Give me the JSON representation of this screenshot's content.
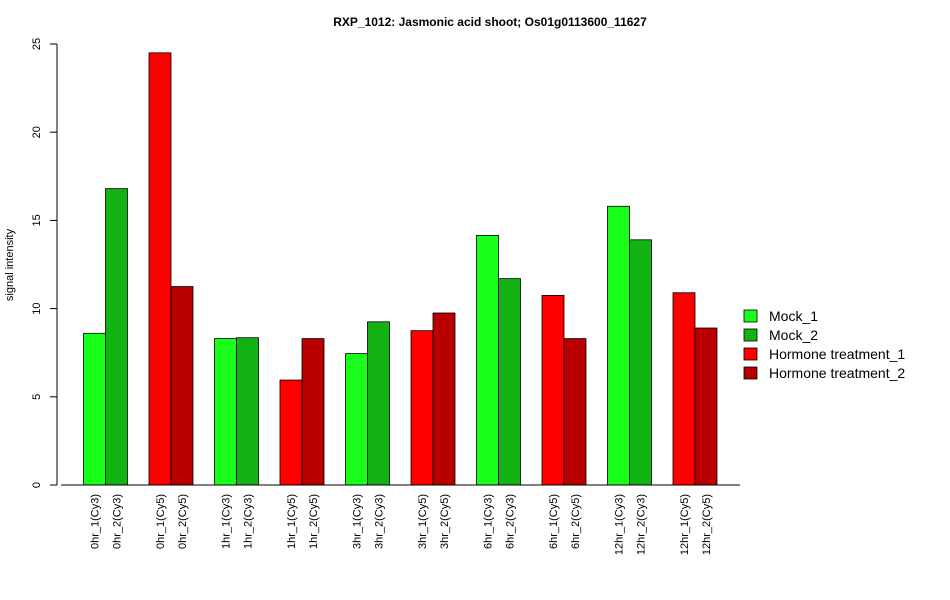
{
  "chart_data": {
    "type": "bar",
    "title": "RXP_1012: Jasmonic acid shoot; Os01g0113600_11627",
    "ylabel": "signal intensity",
    "xlabel": "",
    "ylim": [
      0,
      25
    ],
    "yticks": [
      0,
      5,
      10,
      15,
      20,
      25
    ],
    "grid": false,
    "legend_position": "right",
    "legend": [
      {
        "name": "Mock_1",
        "color": "#1aff1a"
      },
      {
        "name": "Mock_2",
        "color": "#11b211"
      },
      {
        "name": "Hormone treatment_1",
        "color": "#ff0000"
      },
      {
        "name": "Hormone treatment_2",
        "color": "#b80000"
      }
    ],
    "bars": [
      {
        "label": "0hr_1(Cy3)",
        "value": 8.6,
        "color": "#1aff1a"
      },
      {
        "label": "0hr_2(Cy3)",
        "value": 16.8,
        "color": "#11b211"
      },
      {
        "label": "0hr_1(Cy5)",
        "value": 24.5,
        "color": "#ff0000"
      },
      {
        "label": "0hr_2(Cy5)",
        "value": 11.25,
        "color": "#b80000"
      },
      {
        "label": "1hr_1(Cy3)",
        "value": 8.3,
        "color": "#1aff1a"
      },
      {
        "label": "1hr_2(Cy3)",
        "value": 8.35,
        "color": "#11b211"
      },
      {
        "label": "1hr_1(Cy5)",
        "value": 5.95,
        "color": "#ff0000"
      },
      {
        "label": "1hr_2(Cy5)",
        "value": 8.3,
        "color": "#b80000"
      },
      {
        "label": "3hr_1(Cy3)",
        "value": 7.45,
        "color": "#1aff1a"
      },
      {
        "label": "3hr_2(Cy3)",
        "value": 9.25,
        "color": "#11b211"
      },
      {
        "label": "3hr_1(Cy5)",
        "value": 8.75,
        "color": "#ff0000"
      },
      {
        "label": "3hr_2(Cy5)",
        "value": 9.75,
        "color": "#b80000"
      },
      {
        "label": "6hr_1(Cy3)",
        "value": 14.15,
        "color": "#1aff1a"
      },
      {
        "label": "6hr_2(Cy3)",
        "value": 11.7,
        "color": "#11b211"
      },
      {
        "label": "6hr_1(Cy5)",
        "value": 10.75,
        "color": "#ff0000"
      },
      {
        "label": "6hr_2(Cy5)",
        "value": 8.3,
        "color": "#b80000"
      },
      {
        "label": "12hr_1(Cy3)",
        "value": 15.8,
        "color": "#1aff1a"
      },
      {
        "label": "12hr_2(Cy3)",
        "value": 13.9,
        "color": "#11b211"
      },
      {
        "label": "12hr_1(Cy5)",
        "value": 10.9,
        "color": "#ff0000"
      },
      {
        "label": "12hr_2(Cy5)",
        "value": 8.9,
        "color": "#b80000"
      }
    ]
  }
}
